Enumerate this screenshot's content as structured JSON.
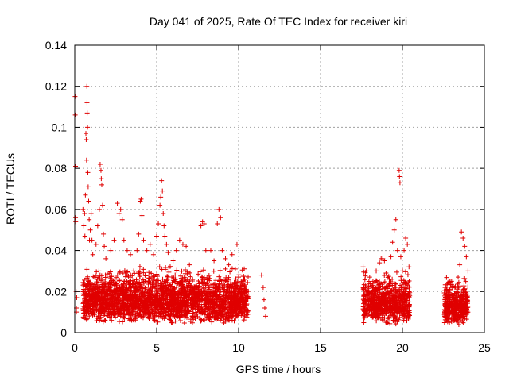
{
  "chart_data": {
    "type": "scatter",
    "title": "Day 041 of 2025, Rate Of TEC Index for receiver kiri",
    "xlabel": "GPS time / hours",
    "ylabel": "ROTI / TECUs",
    "xlim": [
      0,
      25
    ],
    "ylim": [
      0,
      0.14
    ],
    "xticks": [
      "0",
      "5",
      "10",
      "15",
      "20",
      "25"
    ],
    "yticks": [
      "0",
      "0.02",
      "0.04",
      "0.06",
      "0.08",
      "0.1",
      "0.12",
      "0.14"
    ],
    "xtick_values": [
      0,
      5,
      10,
      15,
      20,
      25
    ],
    "ytick_values": [
      0,
      0.02,
      0.04,
      0.06,
      0.08,
      0.1,
      0.12,
      0.14
    ],
    "grid": true,
    "marker": "plus",
    "color": "#e00000",
    "series": [
      {
        "name": "ROTI",
        "points": [
          [
            0.02,
            0.115
          ],
          [
            0.03,
            0.106
          ],
          [
            0.05,
            0.081
          ],
          [
            0.05,
            0.056
          ],
          [
            0.06,
            0.054
          ],
          [
            0.08,
            0.02
          ],
          [
            0.1,
            0.012
          ],
          [
            0.1,
            0.01
          ],
          [
            0.12,
            0.017
          ],
          [
            0.5,
            0.06
          ],
          [
            0.55,
            0.052
          ],
          [
            0.6,
            0.058
          ],
          [
            0.62,
            0.047
          ],
          [
            0.65,
            0.067
          ],
          [
            0.68,
            0.097
          ],
          [
            0.7,
            0.094
          ],
          [
            0.72,
            0.084
          ],
          [
            0.74,
            0.12
          ],
          [
            0.75,
            0.112
          ],
          [
            0.76,
            0.107
          ],
          [
            0.78,
            0.1
          ],
          [
            0.8,
            0.078
          ],
          [
            0.82,
            0.071
          ],
          [
            0.85,
            0.064
          ],
          [
            0.88,
            0.055
          ],
          [
            0.9,
            0.045
          ],
          [
            0.95,
            0.05
          ],
          [
            1.0,
            0.058
          ],
          [
            1.05,
            0.045
          ],
          [
            1.1,
            0.038
          ],
          [
            1.3,
            0.043
          ],
          [
            1.4,
            0.052
          ],
          [
            1.5,
            0.06
          ],
          [
            1.55,
            0.082
          ],
          [
            1.6,
            0.079
          ],
          [
            1.62,
            0.075
          ],
          [
            1.65,
            0.072
          ],
          [
            1.7,
            0.062
          ],
          [
            1.75,
            0.048
          ],
          [
            1.8,
            0.042
          ],
          [
            1.9,
            0.036
          ],
          [
            2.2,
            0.04
          ],
          [
            2.4,
            0.045
          ],
          [
            2.6,
            0.063
          ],
          [
            2.7,
            0.058
          ],
          [
            2.8,
            0.06
          ],
          [
            2.9,
            0.055
          ],
          [
            3.0,
            0.045
          ],
          [
            3.2,
            0.04
          ],
          [
            3.4,
            0.038
          ],
          [
            3.6,
            0.03
          ],
          [
            3.8,
            0.04
          ],
          [
            3.9,
            0.048
          ],
          [
            4.0,
            0.064
          ],
          [
            4.05,
            0.065
          ],
          [
            4.1,
            0.057
          ],
          [
            4.2,
            0.045
          ],
          [
            4.4,
            0.04
          ],
          [
            4.6,
            0.043
          ],
          [
            4.8,
            0.038
          ],
          [
            5.0,
            0.047
          ],
          [
            5.1,
            0.053
          ],
          [
            5.2,
            0.062
          ],
          [
            5.25,
            0.066
          ],
          [
            5.3,
            0.074
          ],
          [
            5.35,
            0.069
          ],
          [
            5.4,
            0.058
          ],
          [
            5.45,
            0.052
          ],
          [
            5.5,
            0.047
          ],
          [
            5.6,
            0.043
          ],
          [
            5.7,
            0.039
          ],
          [
            6.0,
            0.035
          ],
          [
            6.2,
            0.04
          ],
          [
            6.4,
            0.045
          ],
          [
            6.6,
            0.043
          ],
          [
            6.8,
            0.042
          ],
          [
            7.0,
            0.033
          ],
          [
            7.7,
            0.052
          ],
          [
            7.8,
            0.054
          ],
          [
            7.9,
            0.053
          ],
          [
            8.0,
            0.04
          ],
          [
            8.3,
            0.04
          ],
          [
            8.5,
            0.035
          ],
          [
            8.7,
            0.053
          ],
          [
            8.8,
            0.06
          ],
          [
            8.9,
            0.056
          ],
          [
            9.0,
            0.04
          ],
          [
            9.2,
            0.036
          ],
          [
            9.4,
            0.033
          ],
          [
            9.6,
            0.038
          ],
          [
            9.8,
            0.031
          ],
          [
            9.9,
            0.043
          ],
          [
            10.0,
            0.027
          ],
          [
            10.2,
            0.024
          ],
          [
            10.4,
            0.021
          ],
          [
            11.4,
            0.028
          ],
          [
            11.5,
            0.022
          ],
          [
            11.55,
            0.016
          ],
          [
            11.6,
            0.012
          ],
          [
            11.65,
            0.008
          ],
          [
            17.6,
            0.032
          ],
          [
            17.8,
            0.03
          ],
          [
            18.0,
            0.027
          ],
          [
            18.2,
            0.025
          ],
          [
            18.4,
            0.03
          ],
          [
            18.6,
            0.034
          ],
          [
            18.7,
            0.036
          ],
          [
            18.8,
            0.036
          ],
          [
            18.9,
            0.035
          ],
          [
            19.0,
            0.029
          ],
          [
            19.2,
            0.026
          ],
          [
            19.3,
            0.037
          ],
          [
            19.4,
            0.044
          ],
          [
            19.5,
            0.05
          ],
          [
            19.6,
            0.055
          ],
          [
            19.7,
            0.04
          ],
          [
            19.8,
            0.079
          ],
          [
            19.82,
            0.076
          ],
          [
            19.85,
            0.073
          ],
          [
            19.9,
            0.037
          ],
          [
            20.0,
            0.03
          ],
          [
            20.1,
            0.04
          ],
          [
            20.2,
            0.046
          ],
          [
            20.3,
            0.043
          ],
          [
            20.4,
            0.032
          ],
          [
            22.6,
            0.022
          ],
          [
            22.8,
            0.02
          ],
          [
            23.0,
            0.025
          ],
          [
            23.2,
            0.022
          ],
          [
            23.4,
            0.027
          ],
          [
            23.5,
            0.033
          ],
          [
            23.6,
            0.049
          ],
          [
            23.7,
            0.046
          ],
          [
            23.8,
            0.042
          ],
          [
            23.9,
            0.037
          ],
          [
            24.0,
            0.03
          ]
        ],
        "dense_bands": [
          {
            "x": [
              0.5,
              10.6
            ],
            "y": [
              0.004,
              0.035
            ],
            "count": 2600
          },
          {
            "x": [
              17.6,
              20.45
            ],
            "y": [
              0.004,
              0.032
            ],
            "count": 700
          },
          {
            "x": [
              22.55,
              24.0
            ],
            "y": [
              0.003,
              0.03
            ],
            "count": 420
          }
        ]
      }
    ]
  }
}
